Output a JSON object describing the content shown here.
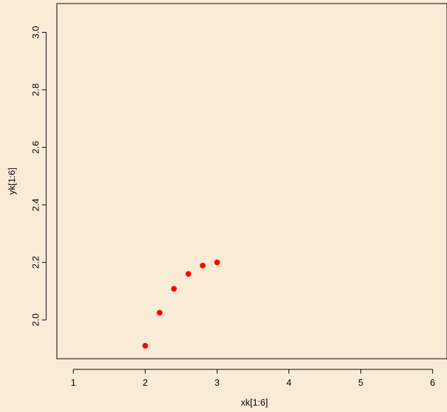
{
  "chart_data": {
    "type": "scatter",
    "title": "",
    "xlabel": "xk[1:6]",
    "ylabel": "yk[1:6]",
    "x": [
      2.0,
      2.2,
      2.4,
      2.6,
      2.8,
      3.0
    ],
    "y": [
      1.91,
      2.025,
      2.108,
      2.16,
      2.189,
      2.2
    ],
    "xlim": [
      0.77,
      6.2
    ],
    "ylim": [
      1.865,
      3.1
    ],
    "xticks": [
      1,
      2,
      3,
      4,
      5,
      6
    ],
    "xtick_labels": [
      "1",
      "2",
      "3",
      "4",
      "5",
      "6"
    ],
    "yticks": [
      2.0,
      2.2,
      2.4,
      2.6,
      2.8,
      3.0
    ],
    "ytick_labels": [
      "2.0",
      "2.2",
      "2.4",
      "2.6",
      "2.8",
      "3.0"
    ],
    "grid": false,
    "legend": "none",
    "colors": {
      "points": "#FF0000",
      "background": "#FAEBD7",
      "axes": "#000000"
    }
  }
}
